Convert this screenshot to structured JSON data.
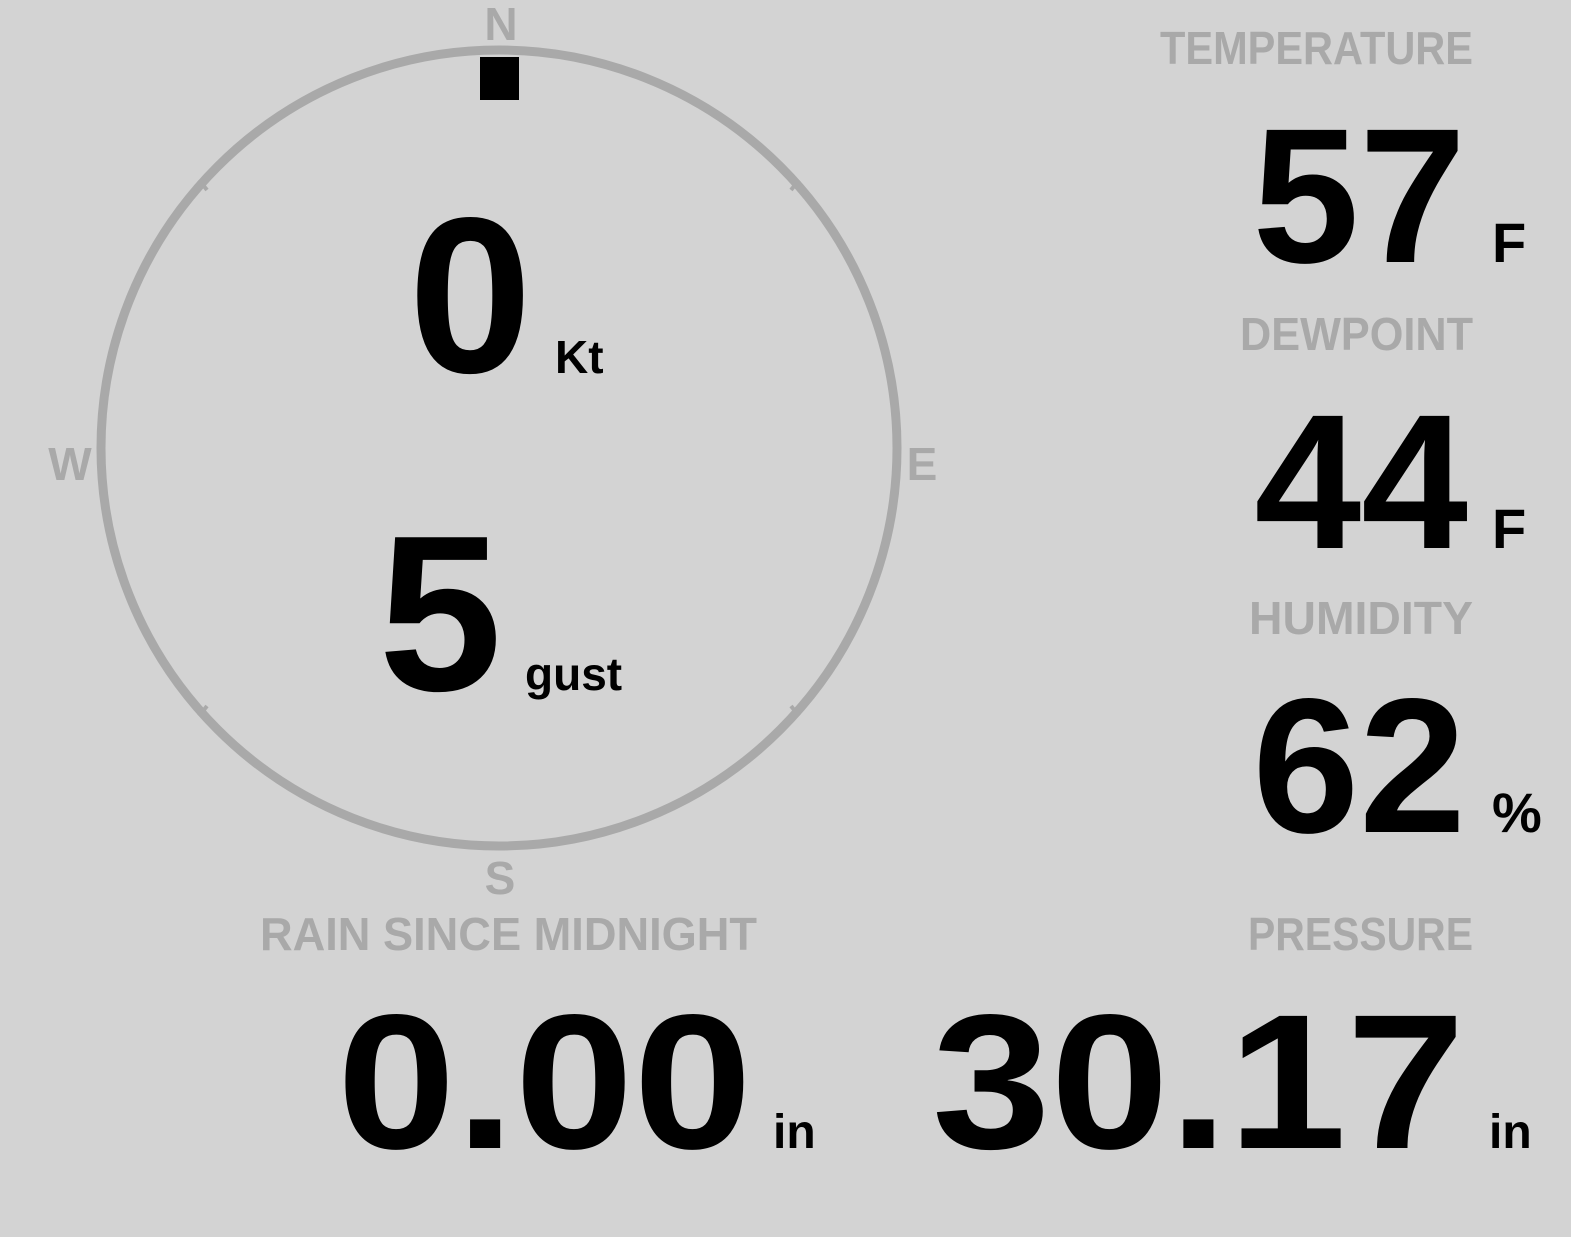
{
  "colors": {
    "background": "#d3d3d3",
    "label": "#a9a9a9",
    "value": "#000000"
  },
  "wind": {
    "compass": {
      "north": "N",
      "south": "S",
      "east": "E",
      "west": "W"
    },
    "direction_deg": 0,
    "speed": "0",
    "speed_unit": "Kt",
    "gust": "5",
    "gust_unit": "gust"
  },
  "temperature": {
    "label": "TEMPERATURE",
    "value": "57",
    "unit": "F"
  },
  "dewpoint": {
    "label": "DEWPOINT",
    "value": "44",
    "unit": "F"
  },
  "humidity": {
    "label": "HUMIDITY",
    "value": "62",
    "unit": "%"
  },
  "pressure": {
    "label": "PRESSURE",
    "value": "30.17",
    "unit": "in"
  },
  "rain": {
    "label": "RAIN SINCE MIDNIGHT",
    "value": "0.00",
    "unit": "in"
  }
}
